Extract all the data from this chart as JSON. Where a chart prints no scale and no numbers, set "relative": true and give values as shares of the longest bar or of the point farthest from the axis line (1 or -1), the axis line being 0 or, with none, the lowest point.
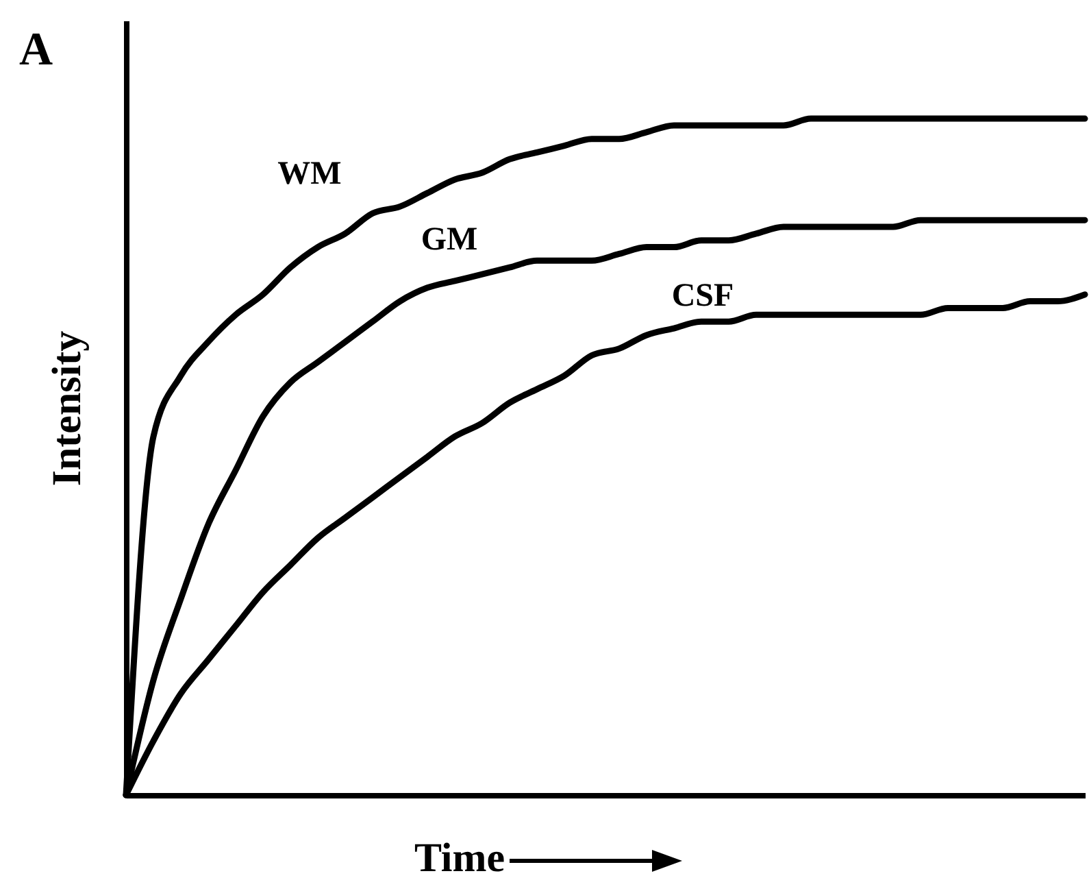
{
  "chart_data": {
    "type": "line",
    "title": "A",
    "xlabel": "Time",
    "ylabel": "Intensity",
    "relative": true,
    "tick_labels": false,
    "categories": [
      null,
      null,
      null,
      null,
      null,
      null,
      null,
      null,
      null,
      null,
      null,
      null,
      null,
      null,
      null,
      null,
      null,
      null,
      null,
      null,
      null,
      null,
      null,
      null,
      null,
      null,
      null,
      null,
      null,
      null,
      null,
      null,
      null,
      null,
      null,
      null
    ],
    "series": [
      {
        "name": "WM",
        "color": "#000000",
        "values": [
          0,
          0.53,
          0.62,
          0.67,
          0.71,
          0.74,
          0.78,
          0.81,
          0.83,
          0.86,
          0.87,
          0.89,
          0.91,
          0.92,
          0.94,
          0.95,
          0.96,
          0.97,
          0.97,
          0.98,
          0.99,
          0.99,
          0.99,
          0.99,
          0.99,
          1,
          1,
          1,
          1,
          1,
          1,
          1,
          1,
          1,
          1,
          1
        ]
      },
      {
        "name": "GM",
        "color": "#000000",
        "values": [
          0,
          0.17,
          0.29,
          0.4,
          0.48,
          0.56,
          0.61,
          0.64,
          0.67,
          0.7,
          0.73,
          0.75,
          0.76,
          0.77,
          0.78,
          0.79,
          0.79,
          0.79,
          0.8,
          0.81,
          0.81,
          0.82,
          0.82,
          0.83,
          0.84,
          0.84,
          0.84,
          0.84,
          0.84,
          0.85,
          0.85,
          0.85,
          0.85,
          0.85,
          0.85,
          0.85
        ]
      },
      {
        "name": "CSF",
        "color": "#000000",
        "values": [
          0,
          0.08,
          0.15,
          0.2,
          0.25,
          0.3,
          0.34,
          0.38,
          0.41,
          0.44,
          0.47,
          0.5,
          0.53,
          0.55,
          0.58,
          0.6,
          0.62,
          0.65,
          0.66,
          0.68,
          0.69,
          0.7,
          0.7,
          0.71,
          0.71,
          0.71,
          0.71,
          0.71,
          0.71,
          0.71,
          0.72,
          0.72,
          0.72,
          0.73,
          0.73,
          0.74
        ]
      }
    ]
  }
}
